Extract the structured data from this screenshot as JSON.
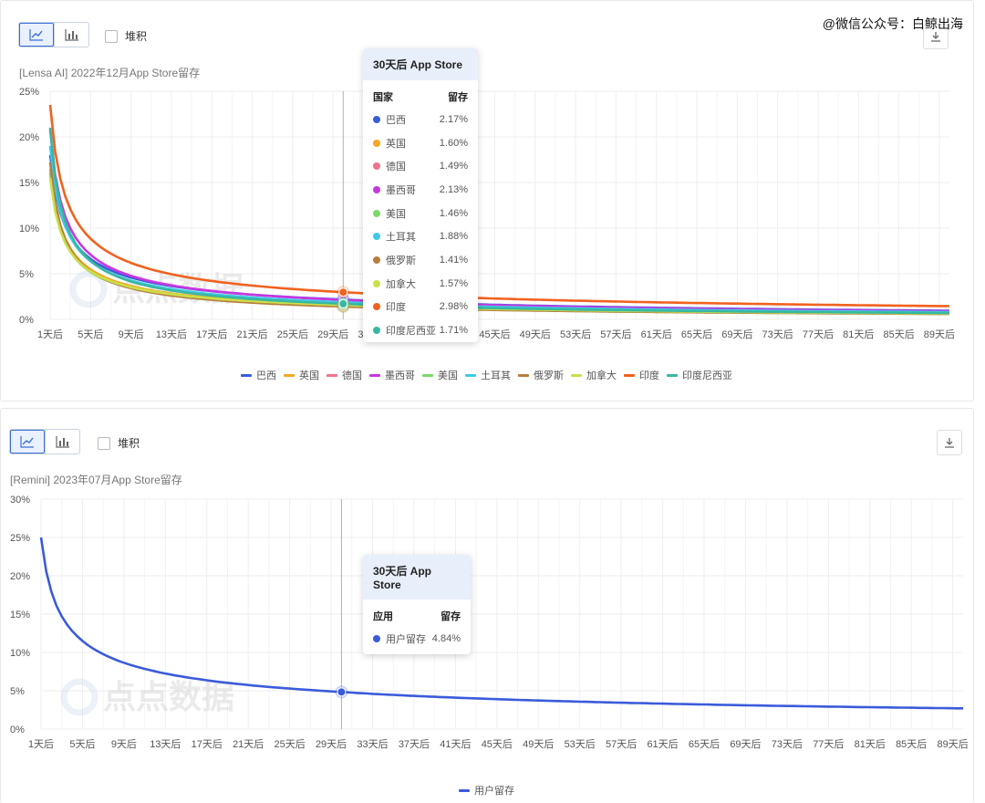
{
  "watermark": "@微信公众号：白鲸出海",
  "stack_label": "堆积",
  "logo_text": "点点数据",
  "x_categories": [
    "1天后",
    "5天后",
    "9天后",
    "13天后",
    "17天后",
    "21天后",
    "25天后",
    "29天后",
    "33天后",
    "37天后",
    "41天后",
    "45天后",
    "49天后",
    "53天后",
    "57天后",
    "61天后",
    "65天后",
    "69天后",
    "73天后",
    "77天后",
    "81天后",
    "85天后",
    "89天后"
  ],
  "panel_a": {
    "subtitle": "[Lensa AI]  2022年12月App Store留存",
    "tooltip": {
      "title": "30天后 App Store",
      "col_name": "国家",
      "col_value": "留存",
      "rows": [
        {
          "name": "巴西",
          "value": "2.17%",
          "color": "#3b5bdb"
        },
        {
          "name": "英国",
          "value": "1.60%",
          "color": "#f5a623"
        },
        {
          "name": "德国",
          "value": "1.49%",
          "color": "#f2728b"
        },
        {
          "name": "墨西哥",
          "value": "2.13%",
          "color": "#c837e0"
        },
        {
          "name": "美国",
          "value": "1.46%",
          "color": "#7bd96a"
        },
        {
          "name": "土耳其",
          "value": "1.88%",
          "color": "#3fc8e8"
        },
        {
          "name": "俄罗斯",
          "value": "1.41%",
          "color": "#b87d3e"
        },
        {
          "name": "加拿大",
          "value": "1.57%",
          "color": "#c9e04a"
        },
        {
          "name": "印度",
          "value": "2.98%",
          "color": "#f0621f"
        },
        {
          "name": "印度尼西亚",
          "value": "1.71%",
          "color": "#37b8a0"
        }
      ]
    }
  },
  "panel_b": {
    "subtitle": "[Remini]  2023年07月App Store留存",
    "tooltip": {
      "title": "30天后 App Store",
      "col_name": "应用",
      "col_value": "留存",
      "rows": [
        {
          "name": "用户留存",
          "value": "4.84%",
          "color": "#3b5bdb"
        }
      ]
    }
  },
  "chart_data": [
    {
      "type": "line",
      "title": "[Lensa AI]  2022年12月App Store留存",
      "x_start_day": 1,
      "x_end_day": 90,
      "ylim": [
        0,
        25
      ],
      "y_ticks": [
        "0%",
        "5%",
        "10%",
        "15%",
        "20%",
        "25%"
      ],
      "grid": true,
      "legend_position": "bottom",
      "highlight_day": 30,
      "series": [
        {
          "name": "巴西",
          "color": "#3b5bdb",
          "day1": 18.0,
          "day30": 2.17,
          "day90": 0.95
        },
        {
          "name": "英国",
          "color": "#f5a623",
          "day1": 16.5,
          "day30": 1.6,
          "day90": 0.7
        },
        {
          "name": "德国",
          "color": "#f2728b",
          "day1": 16.0,
          "day30": 1.49,
          "day90": 0.65
        },
        {
          "name": "墨西哥",
          "color": "#c837e0",
          "day1": 20.8,
          "day30": 2.13,
          "day90": 0.9
        },
        {
          "name": "美国",
          "color": "#7bd96a",
          "day1": 16.2,
          "day30": 1.46,
          "day90": 0.6
        },
        {
          "name": "土耳其",
          "color": "#3fc8e8",
          "day1": 19.0,
          "day30": 1.88,
          "day90": 0.8
        },
        {
          "name": "俄罗斯",
          "color": "#b87d3e",
          "day1": 17.2,
          "day30": 1.41,
          "day90": 0.6
        },
        {
          "name": "加拿大",
          "color": "#c9e04a",
          "day1": 15.5,
          "day30": 1.57,
          "day90": 0.65
        },
        {
          "name": "印度",
          "color": "#f0621f",
          "day1": 23.5,
          "day30": 2.98,
          "day90": 1.45
        },
        {
          "name": "印度尼西亚",
          "color": "#37b8a0",
          "day1": 21.0,
          "day30": 1.71,
          "day90": 0.7
        }
      ]
    },
    {
      "type": "line",
      "title": "[Remini]  2023年07月App Store留存",
      "x_start_day": 1,
      "x_end_day": 90,
      "ylim": [
        0,
        30
      ],
      "y_ticks": [
        "0%",
        "5%",
        "10%",
        "15%",
        "20%",
        "25%",
        "30%"
      ],
      "grid": true,
      "legend_position": "bottom",
      "highlight_day": 30,
      "series": [
        {
          "name": "用户留存",
          "color": "#3b5bdb",
          "day1": 25.0,
          "day30": 4.84,
          "day90": 2.7
        }
      ]
    }
  ]
}
